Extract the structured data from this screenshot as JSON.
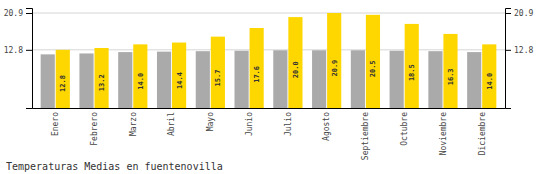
{
  "chart_data": {
    "type": "bar",
    "title": "Temperaturas Medias en fuentenovilla",
    "categories": [
      "Enero",
      "Febrero",
      "Marzo",
      "Abril",
      "Mayo",
      "Junio",
      "Julio",
      "Agosto",
      "Septiembre",
      "Octubre",
      "Noviembre",
      "Diciembre"
    ],
    "series": [
      {
        "color": "#AAAAAA",
        "values": [
          11.8,
          12.0,
          12.3,
          12.4,
          12.5,
          12.6,
          12.7,
          12.7,
          12.7,
          12.6,
          12.5,
          12.3
        ]
      },
      {
        "color": "#FFD700",
        "values": [
          12.8,
          13.2,
          14.0,
          14.4,
          15.7,
          17.6,
          20.0,
          20.9,
          20.5,
          18.5,
          16.3,
          14.0
        ],
        "value_labels": [
          "12.8",
          "13.2",
          "14.0",
          "14.4",
          "15.7",
          "17.6",
          "20.0",
          "20.9",
          "20.5",
          "18.5",
          "16.3",
          "14.0"
        ],
        "data_labels": true
      }
    ],
    "ylim": [
      0,
      22.0
    ],
    "yticks": [
      12.8,
      20.9
    ],
    "y2lim": [
      0,
      22.0
    ],
    "y2ticks": [
      12.8,
      20.9
    ],
    "grid": true
  }
}
